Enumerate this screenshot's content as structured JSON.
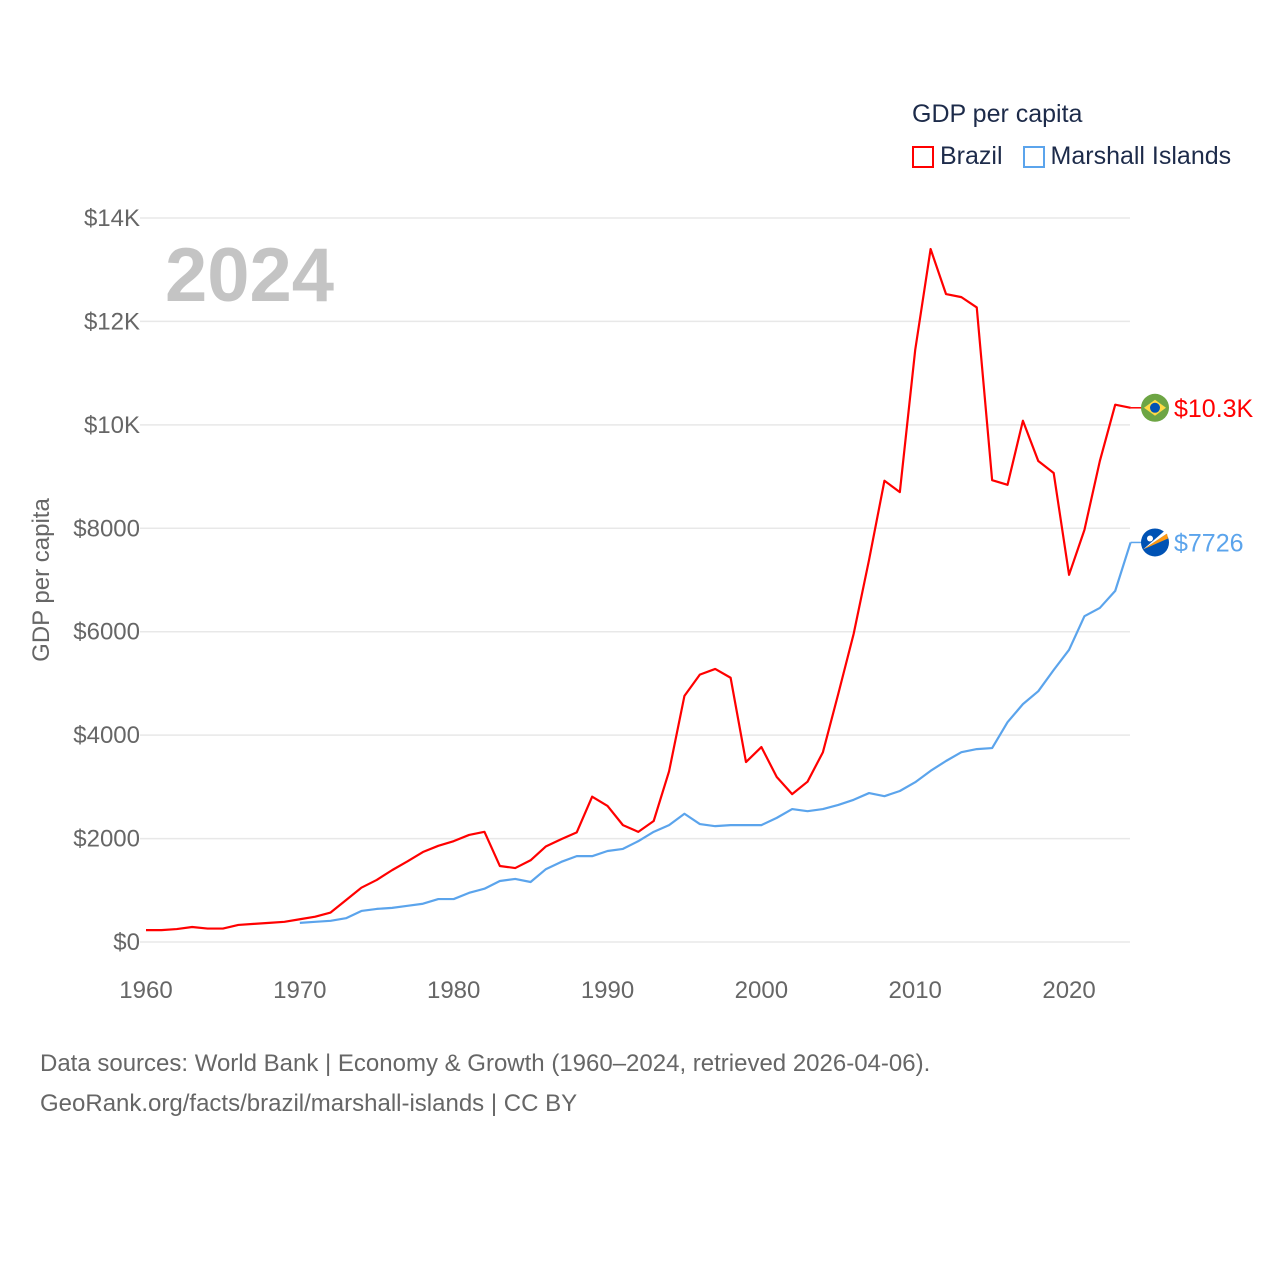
{
  "chart_data": {
    "type": "line",
    "title": "GDP per capita",
    "ylabel": "GDP per capita",
    "xlabel": "",
    "xlim": [
      1960,
      2024
    ],
    "ylim": [
      0,
      14000
    ],
    "grid": true,
    "legend_position": "top-right",
    "x_ticks": [
      "1960",
      "1970",
      "1980",
      "1990",
      "2000",
      "2010",
      "2020"
    ],
    "y_ticks": [
      "$0",
      "$2000",
      "$4000",
      "$6000",
      "$8000",
      "$10K",
      "$12K",
      "$14K"
    ],
    "y_tick_values": [
      0,
      2000,
      4000,
      6000,
      8000,
      10000,
      12000,
      14000
    ],
    "year_label": "2024",
    "series": [
      {
        "name": "Brazil",
        "color": "#ff0000",
        "start_year": 1960,
        "end_label": "$10.3K",
        "flag": "brazil-flag",
        "values": [
          230,
          230,
          250,
          290,
          260,
          260,
          330,
          350,
          370,
          390,
          440,
          490,
          570,
          810,
          1050,
          1200,
          1390,
          1560,
          1740,
          1860,
          1950,
          2070,
          2130,
          1470,
          1430,
          1580,
          1850,
          1990,
          2120,
          2810,
          2630,
          2260,
          2130,
          2340,
          3300,
          4760,
          5170,
          5280,
          5110,
          3480,
          3770,
          3190,
          2860,
          3100,
          3670,
          4800,
          5960,
          7390,
          8920,
          8700,
          11450,
          13400,
          12530,
          12470,
          12270,
          8930,
          8840,
          10080,
          9300,
          9070,
          7100,
          7970,
          9300,
          10390,
          10330
        ]
      },
      {
        "name": "Marshall Islands",
        "color": "#5ba4ec",
        "start_year": 1970,
        "end_label": "$7726",
        "flag": "marshall-islands-flag",
        "values": [
          370,
          390,
          410,
          460,
          600,
          640,
          660,
          700,
          740,
          830,
          830,
          950,
          1030,
          1180,
          1220,
          1160,
          1410,
          1550,
          1660,
          1660,
          1760,
          1800,
          1950,
          2130,
          2260,
          2480,
          2280,
          2240,
          2260,
          2260,
          2260,
          2400,
          2570,
          2530,
          2570,
          2650,
          2750,
          2880,
          2820,
          2920,
          3090,
          3310,
          3500,
          3670,
          3730,
          3750,
          4250,
          4600,
          4850,
          5260,
          5650,
          6300,
          6460,
          6790,
          7726
        ]
      }
    ]
  },
  "footer": {
    "line1": "Data sources: World Bank | Economy & Growth (1960–2024, retrieved 2026-04-06).",
    "line2": "GeoRank.org/facts/brazil/marshall-islands | CC BY"
  }
}
